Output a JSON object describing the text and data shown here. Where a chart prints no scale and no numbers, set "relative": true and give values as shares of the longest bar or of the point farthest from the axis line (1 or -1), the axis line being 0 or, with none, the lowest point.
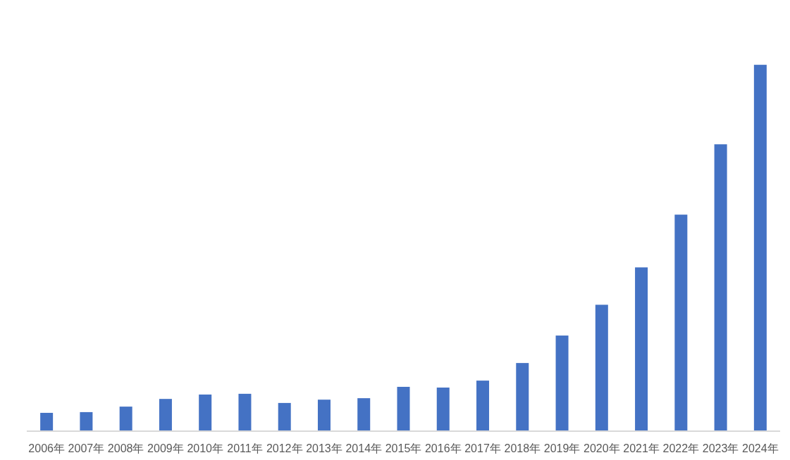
{
  "chart_data": {
    "type": "bar",
    "relative": true,
    "categories": [
      "2006年",
      "2007年",
      "2008年",
      "2009年",
      "2010年",
      "2011年",
      "2012年",
      "2013年",
      "2014年",
      "2015年",
      "2016年",
      "2017年",
      "2018年",
      "2019年",
      "2020年",
      "2021年",
      "2022年",
      "2023年",
      "2024年"
    ],
    "values": [
      0.05,
      0.052,
      0.067,
      0.088,
      0.1,
      0.102,
      0.077,
      0.086,
      0.09,
      0.121,
      0.119,
      0.138,
      0.186,
      0.261,
      0.345,
      0.447,
      0.591,
      0.783,
      1
    ],
    "color": "#4472c4"
  }
}
